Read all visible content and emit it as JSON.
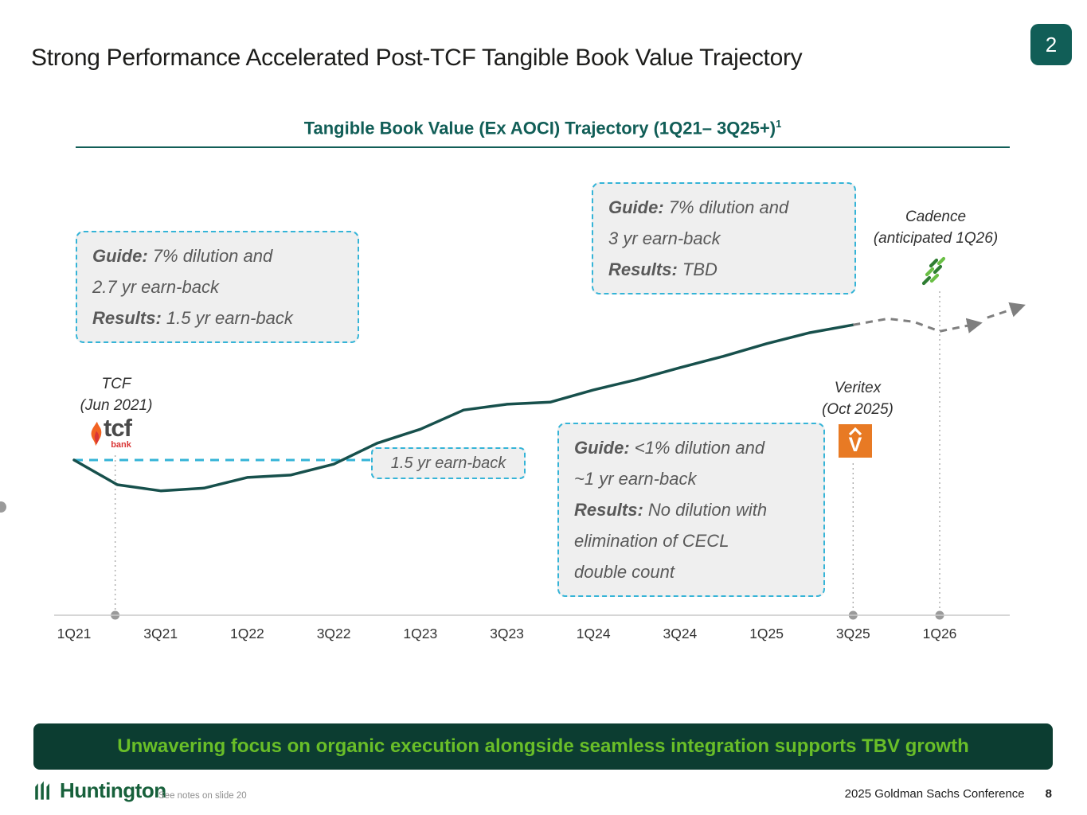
{
  "slide": {
    "page_badge": "2",
    "title": "Strong Performance Accelerated Post-TCF Tangible Book Value Trajectory",
    "banner_text": "Unwavering focus on organic execution alongside seamless integration supports TBV growth",
    "footer": {
      "brand": "Huntington",
      "notes": "See notes on slide 20",
      "conference": "2025 Goldman Sachs Conference",
      "page_number": "8"
    }
  },
  "chart": {
    "title": "Tangible Book Value (Ex AOCI) Trajectory (1Q21– 3Q25+)",
    "title_superscript": "1"
  },
  "callouts": {
    "tcf": {
      "line1_label": "Guide:",
      "line1_text": " 7% dilution and",
      "line2_text": "2.7 yr earn-back",
      "line3_label": "Results:",
      "line3_text": " 1.5 yr earn-back"
    },
    "cadence": {
      "line1_label": "Guide:",
      "line1_text": " 7% dilution and",
      "line2_text": "3 yr earn-back",
      "line3_label": "Results:",
      "line3_text": " TBD"
    },
    "veritex": {
      "line1_label": "Guide:",
      "line1_text": " <1% dilution and",
      "line2_text": "~1 yr earn-back",
      "line3_label": "Results:",
      "line3_text": " No dilution with",
      "line4_text": "elimination of CECL",
      "line5_text": "double count"
    },
    "earnback_note": "1.5 yr earn-back"
  },
  "annotations": {
    "tcf": {
      "name": "TCF",
      "date": "(Jun 2021)"
    },
    "veritex": {
      "name": "Veritex",
      "date": "(Oct 2025)"
    },
    "cadence": {
      "name": "Cadence",
      "date": "(anticipated 1Q26)"
    }
  },
  "logos": {
    "tcf_word": "tcf",
    "tcf_bank": "bank",
    "veritex_letter": "V"
  },
  "chart_data": {
    "type": "line",
    "title": "Tangible Book Value (Ex AOCI) Trajectory (1Q21– 3Q25+)1",
    "x_tick_labels": [
      "1Q21",
      "3Q21",
      "1Q22",
      "3Q22",
      "1Q23",
      "3Q23",
      "1Q24",
      "3Q24",
      "1Q25",
      "3Q25",
      "1Q26"
    ],
    "y_axis": "unlabeled in figure; values below are estimated relative TBV index (1Q21 = 100)",
    "grid": false,
    "legend": "none",
    "series": [
      {
        "name": "Tangible book value (ex AOCI), actual",
        "style": "solid",
        "x": [
          "1Q21",
          "2Q21",
          "3Q21",
          "4Q21",
          "1Q22",
          "2Q22",
          "3Q22",
          "4Q22",
          "1Q23",
          "2Q23",
          "3Q23",
          "4Q23",
          "1Q24",
          "2Q24",
          "3Q24",
          "4Q24",
          "1Q25",
          "2Q25",
          "3Q25"
        ],
        "x_index": [
          0,
          1,
          2,
          3,
          4,
          5,
          6,
          7,
          8,
          9,
          10,
          11,
          12,
          13,
          14,
          15,
          16,
          17,
          18
        ],
        "values": [
          100,
          92.8,
          91,
          91.8,
          94.9,
          95.6,
          98.8,
          104.9,
          109,
          114.6,
          116.3,
          116.9,
          120.5,
          123.5,
          127,
          130.3,
          134,
          137.2,
          139.5
        ]
      }
    ],
    "projection_segments": [
      {
        "name": "Anticipated trajectory (dashed)",
        "x_index": [
          18,
          18.8,
          19.4,
          20,
          20.85
        ],
        "values": [
          139.5,
          141.3,
          140.4,
          137.6,
          139.8
        ]
      },
      {
        "name": "Anticipated trajectory continuation (dashed, arrow up)",
        "x_index": [
          21.1,
          21.85
        ],
        "values": [
          141.6,
          144.8
        ]
      }
    ],
    "reference_line": {
      "type": "horizontal-dashed",
      "value": 100,
      "label": "1.5 yr earn-back",
      "x_start_index": 0,
      "x_end_index": 6.86
    },
    "events": [
      {
        "label": "TCF",
        "date": "(Jun 2021)",
        "x_index": 0.95
      },
      {
        "label": "Veritex",
        "date": "(Oct 2025)",
        "x_index": 18
      },
      {
        "label": "Cadence",
        "date": "(anticipated 1Q26)",
        "x_index": 20
      }
    ]
  },
  "colors": {
    "dark_teal": "#115E57",
    "chart_line": "#17504C",
    "callout_border": "#35B4D7",
    "callout_bg": "#EFEFEF",
    "callout_text": "#595959",
    "projection_gray": "#7F7F7F",
    "axis_gray": "#C9C9C9",
    "banner_bg": "#0C3D31",
    "banner_text": "#69BE28",
    "veritex_orange": "#E87A24",
    "tcf_flame": "#F26322",
    "tcf_bank_red": "#D93636",
    "huntington_green": "#17603B",
    "cadence_green_light": "#6ABF45",
    "cadence_green_dark": "#2F7D33"
  }
}
